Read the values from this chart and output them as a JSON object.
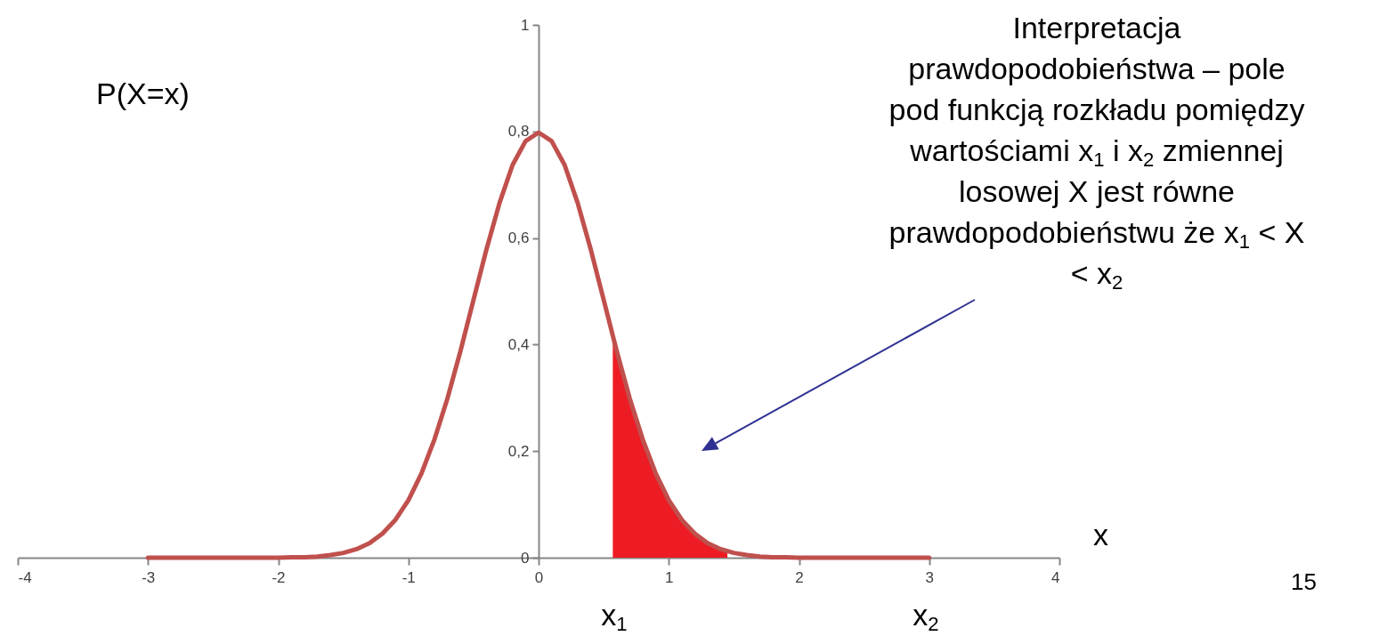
{
  "chart_data": {
    "type": "line",
    "ylabel": "P(X=x)",
    "xlabel": "x",
    "xlim": [
      -4,
      4
    ],
    "ylim": [
      0,
      1
    ],
    "xticks": [
      -4,
      -3,
      -2,
      -1,
      0,
      1,
      2,
      3,
      4
    ],
    "yticks": [
      0,
      {
        "value": 0.2,
        "label": "0,2"
      },
      {
        "value": 0.4,
        "label": "0,4"
      },
      {
        "value": 0.6,
        "label": "0,6"
      },
      {
        "value": 0.8,
        "label": "0,8"
      },
      1
    ],
    "series": [
      {
        "type": "area",
        "color": "#ed1c24",
        "x": [
          0.57,
          0.6,
          0.7,
          0.8,
          0.9,
          1.0,
          1.1,
          1.2,
          1.3,
          1.4,
          1.45
        ],
        "values": [
          0.417,
          0.388,
          0.299,
          0.222,
          0.158,
          0.108,
          0.071,
          0.045,
          0.027,
          0.016,
          0.012
        ]
      },
      {
        "color": "#c0504d",
        "x": [
          -3,
          -2.5,
          -2,
          -1.9,
          -1.8,
          -1.7,
          -1.6,
          -1.5,
          -1.4,
          -1.3,
          -1.2,
          -1.1,
          -1.0,
          -0.9,
          -0.8,
          -0.7,
          -0.6,
          -0.5,
          -0.4,
          -0.3,
          -0.2,
          -0.1,
          0,
          0.1,
          0.2,
          0.3,
          0.4,
          0.5,
          0.6,
          0.7,
          0.8,
          0.9,
          1.0,
          1.1,
          1.2,
          1.3,
          1.4,
          1.5,
          1.6,
          1.7,
          1.8,
          1.9,
          2,
          2.5,
          3
        ],
        "values": [
          0,
          0,
          0,
          0.001,
          0.001,
          0.002,
          0.005,
          0.009,
          0.016,
          0.027,
          0.045,
          0.071,
          0.108,
          0.158,
          0.222,
          0.299,
          0.388,
          0.484,
          0.579,
          0.666,
          0.737,
          0.782,
          0.798,
          0.782,
          0.737,
          0.666,
          0.579,
          0.484,
          0.388,
          0.299,
          0.222,
          0.158,
          0.108,
          0.071,
          0.045,
          0.027,
          0.016,
          0.009,
          0.005,
          0.002,
          0.001,
          0.001,
          0,
          0,
          0
        ]
      }
    ],
    "annotations": [
      "Interpretacja prawdopodobieństwa – pole pod funkcją rozkładu pomiędzy wartościami x$_{1}$ i x$_{2}$ zmiennej losowej X jest równe prawdopodobieństwu że x$_{1}$ < X < x$_{2}$",
      "x$_{1}$",
      "x$_{2}$",
      "15"
    ]
  }
}
